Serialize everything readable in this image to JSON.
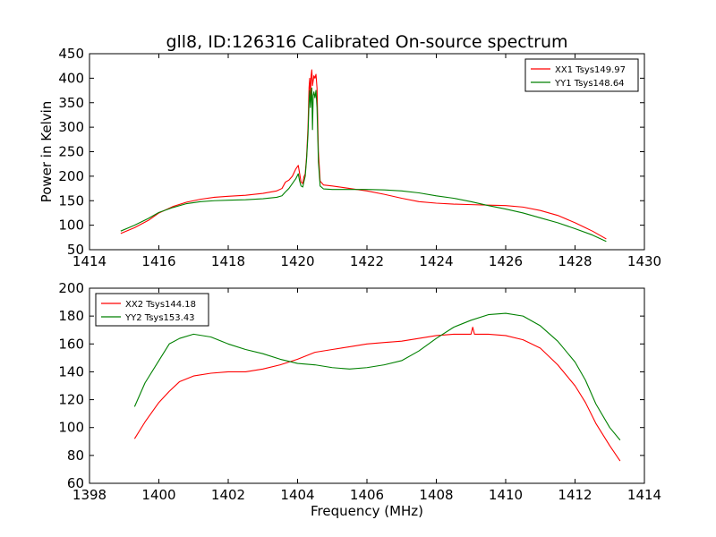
{
  "figure": {
    "title": "gll8, ID:126316 Calibrated On-source spectrum"
  },
  "chart_data": [
    {
      "type": "line",
      "ylabel": "Power in Kelvin",
      "xlabel": "",
      "xlim": [
        1414,
        1430
      ],
      "ylim": [
        50,
        450
      ],
      "xticks": [
        1414,
        1416,
        1418,
        1420,
        1422,
        1424,
        1426,
        1428,
        1430
      ],
      "yticks": [
        50,
        100,
        150,
        200,
        250,
        300,
        350,
        400,
        450
      ],
      "grid": false,
      "legend_position": "top-right",
      "series": [
        {
          "name": "XX1 Tsys149.97",
          "color": "#ff0000",
          "points": [
            [
              1414.9,
              83
            ],
            [
              1415.3,
              95
            ],
            [
              1415.7,
              110
            ],
            [
              1416.0,
              125
            ],
            [
              1416.4,
              138
            ],
            [
              1416.8,
              147
            ],
            [
              1417.2,
              153
            ],
            [
              1417.6,
              157
            ],
            [
              1418.0,
              159
            ],
            [
              1418.5,
              161
            ],
            [
              1419.0,
              165
            ],
            [
              1419.4,
              170
            ],
            [
              1419.55,
              175
            ],
            [
              1419.65,
              188
            ],
            [
              1419.75,
              192
            ],
            [
              1419.85,
              200
            ],
            [
              1419.95,
              215
            ],
            [
              1420.02,
              222
            ],
            [
              1420.06,
              205
            ],
            [
              1420.1,
              188
            ],
            [
              1420.15,
              185
            ],
            [
              1420.18,
              198
            ],
            [
              1420.22,
              205
            ],
            [
              1420.26,
              240
            ],
            [
              1420.3,
              300
            ],
            [
              1420.33,
              380
            ],
            [
              1420.35,
              400
            ],
            [
              1420.37,
              360
            ],
            [
              1420.39,
              405
            ],
            [
              1420.41,
              417
            ],
            [
              1420.43,
              385
            ],
            [
              1420.45,
              395
            ],
            [
              1420.47,
              405
            ],
            [
              1420.5,
              400
            ],
            [
              1420.53,
              408
            ],
            [
              1420.56,
              380
            ],
            [
              1420.6,
              250
            ],
            [
              1420.65,
              190
            ],
            [
              1420.75,
              182
            ],
            [
              1421.0,
              180
            ],
            [
              1421.3,
              177
            ],
            [
              1421.7,
              173
            ],
            [
              1422.0,
              170
            ],
            [
              1422.5,
              163
            ],
            [
              1423.0,
              155
            ],
            [
              1423.5,
              148
            ],
            [
              1424.0,
              145
            ],
            [
              1424.5,
              143
            ],
            [
              1425.0,
              142
            ],
            [
              1425.5,
              141
            ],
            [
              1426.0,
              140
            ],
            [
              1426.5,
              137
            ],
            [
              1427.0,
              130
            ],
            [
              1427.5,
              120
            ],
            [
              1428.0,
              105
            ],
            [
              1428.5,
              88
            ],
            [
              1428.9,
              72
            ]
          ]
        },
        {
          "name": "YY1 Tsys148.64",
          "color": "#008000",
          "points": [
            [
              1414.9,
              88
            ],
            [
              1415.3,
              100
            ],
            [
              1415.7,
              114
            ],
            [
              1416.0,
              126
            ],
            [
              1416.4,
              136
            ],
            [
              1416.8,
              144
            ],
            [
              1417.2,
              148
            ],
            [
              1417.6,
              150
            ],
            [
              1418.0,
              151
            ],
            [
              1418.5,
              152
            ],
            [
              1419.0,
              154
            ],
            [
              1419.4,
              157
            ],
            [
              1419.55,
              160
            ],
            [
              1419.65,
              168
            ],
            [
              1419.75,
              175
            ],
            [
              1419.85,
              185
            ],
            [
              1419.95,
              195
            ],
            [
              1420.02,
              205
            ],
            [
              1420.06,
              190
            ],
            [
              1420.1,
              180
            ],
            [
              1420.15,
              178
            ],
            [
              1420.18,
              188
            ],
            [
              1420.22,
              200
            ],
            [
              1420.26,
              235
            ],
            [
              1420.3,
              285
            ],
            [
              1420.33,
              350
            ],
            [
              1420.35,
              375
            ],
            [
              1420.37,
              340
            ],
            [
              1420.39,
              360
            ],
            [
              1420.41,
              380
            ],
            [
              1420.43,
              295
            ],
            [
              1420.45,
              365
            ],
            [
              1420.47,
              372
            ],
            [
              1420.5,
              360
            ],
            [
              1420.53,
              375
            ],
            [
              1420.56,
              340
            ],
            [
              1420.6,
              230
            ],
            [
              1420.65,
              180
            ],
            [
              1420.75,
              174
            ],
            [
              1421.0,
              173
            ],
            [
              1421.5,
              173
            ],
            [
              1422.0,
              173
            ],
            [
              1422.5,
              172
            ],
            [
              1423.0,
              170
            ],
            [
              1423.5,
              166
            ],
            [
              1424.0,
              160
            ],
            [
              1424.5,
              155
            ],
            [
              1425.0,
              148
            ],
            [
              1425.5,
              140
            ],
            [
              1426.0,
              133
            ],
            [
              1426.5,
              125
            ],
            [
              1427.0,
              115
            ],
            [
              1427.5,
              105
            ],
            [
              1428.0,
              93
            ],
            [
              1428.5,
              80
            ],
            [
              1428.9,
              67
            ]
          ]
        }
      ]
    },
    {
      "type": "line",
      "ylabel": "",
      "xlabel": "Frequency (MHz)",
      "xlim": [
        1398,
        1414
      ],
      "ylim": [
        60,
        200
      ],
      "xticks": [
        1398,
        1400,
        1402,
        1404,
        1406,
        1408,
        1410,
        1412,
        1414
      ],
      "yticks": [
        60,
        80,
        100,
        120,
        140,
        160,
        180,
        200
      ],
      "grid": false,
      "legend_position": "top-left",
      "series": [
        {
          "name": "XX2 Tsys144.18",
          "color": "#ff0000",
          "points": [
            [
              1399.3,
              92
            ],
            [
              1399.6,
              104
            ],
            [
              1400.0,
              118
            ],
            [
              1400.3,
              126
            ],
            [
              1400.6,
              133
            ],
            [
              1401.0,
              137
            ],
            [
              1401.5,
              139
            ],
            [
              1402.0,
              140
            ],
            [
              1402.5,
              140
            ],
            [
              1403.0,
              142
            ],
            [
              1403.5,
              145
            ],
            [
              1404.0,
              149
            ],
            [
              1404.5,
              154
            ],
            [
              1405.0,
              156
            ],
            [
              1405.5,
              158
            ],
            [
              1406.0,
              160
            ],
            [
              1406.5,
              161
            ],
            [
              1407.0,
              162
            ],
            [
              1407.5,
              164
            ],
            [
              1408.0,
              166
            ],
            [
              1408.5,
              167
            ],
            [
              1409.0,
              167
            ],
            [
              1409.05,
              172
            ],
            [
              1409.1,
              167
            ],
            [
              1409.5,
              167
            ],
            [
              1410.0,
              166
            ],
            [
              1410.5,
              163
            ],
            [
              1411.0,
              157
            ],
            [
              1411.5,
              145
            ],
            [
              1412.0,
              130
            ],
            [
              1412.3,
              118
            ],
            [
              1412.6,
              103
            ],
            [
              1413.0,
              87
            ],
            [
              1413.3,
              76
            ]
          ]
        },
        {
          "name": "YY2 Tsys153.43",
          "color": "#008000",
          "points": [
            [
              1399.3,
              115
            ],
            [
              1399.6,
              132
            ],
            [
              1400.0,
              148
            ],
            [
              1400.3,
              160
            ],
            [
              1400.6,
              164
            ],
            [
              1401.0,
              167
            ],
            [
              1401.5,
              165
            ],
            [
              1402.0,
              160
            ],
            [
              1402.5,
              156
            ],
            [
              1403.0,
              153
            ],
            [
              1403.5,
              149
            ],
            [
              1404.0,
              146
            ],
            [
              1404.5,
              145
            ],
            [
              1405.0,
              143
            ],
            [
              1405.5,
              142
            ],
            [
              1406.0,
              143
            ],
            [
              1406.5,
              145
            ],
            [
              1407.0,
              148
            ],
            [
              1407.5,
              155
            ],
            [
              1408.0,
              164
            ],
            [
              1408.5,
              172
            ],
            [
              1409.0,
              177
            ],
            [
              1409.5,
              181
            ],
            [
              1410.0,
              182
            ],
            [
              1410.5,
              180
            ],
            [
              1411.0,
              173
            ],
            [
              1411.5,
              162
            ],
            [
              1412.0,
              147
            ],
            [
              1412.3,
              134
            ],
            [
              1412.6,
              117
            ],
            [
              1413.0,
              100
            ],
            [
              1413.3,
              91
            ]
          ]
        }
      ]
    }
  ]
}
